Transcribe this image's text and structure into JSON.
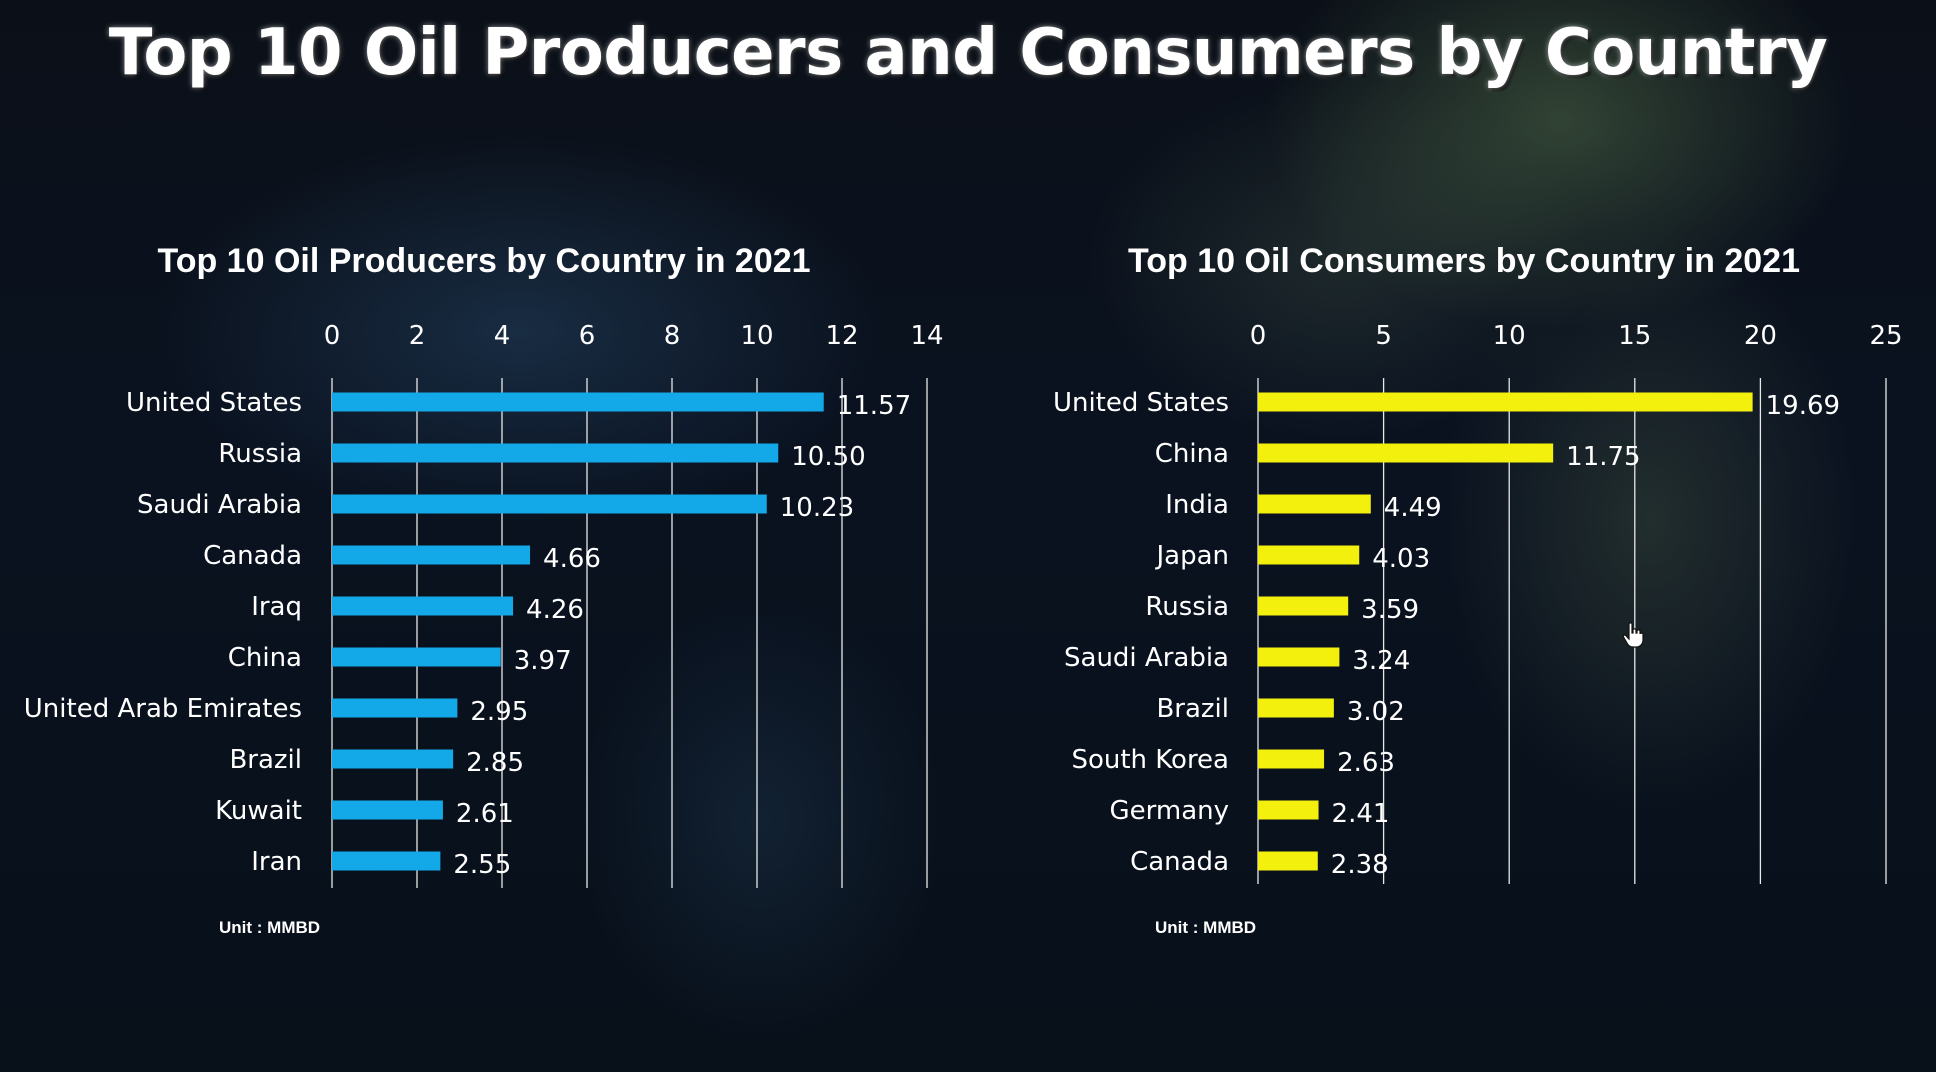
{
  "title": "Top 10 Oil Producers and Consumers by Country",
  "chart_data": [
    {
      "type": "bar",
      "orientation": "horizontal",
      "title": "Top 10 Oil Producers by Country in 2021",
      "categories": [
        "United States",
        "Russia",
        "Saudi Arabia",
        "Canada",
        "Iraq",
        "China",
        "United Arab Emirates",
        "Brazil",
        "Kuwait",
        "Iran"
      ],
      "values": [
        11.57,
        10.5,
        10.23,
        4.66,
        4.26,
        3.97,
        2.95,
        2.85,
        2.61,
        2.55
      ],
      "data_labels": [
        "11.57",
        "10.50",
        "10.23",
        "4.66",
        "4.26",
        "3.97",
        "2.95",
        "2.85",
        "2.61",
        "2.55"
      ],
      "xlim": [
        0,
        14
      ],
      "ticks": [
        0,
        2,
        4,
        6,
        8,
        10,
        12,
        14
      ],
      "axis_position": "top",
      "grid": true,
      "color": "#13a9e8",
      "unit_note": "Unit : MMBD"
    },
    {
      "type": "bar",
      "orientation": "horizontal",
      "title": "Top 10 Oil Consumers by Country in 2021",
      "categories": [
        "United States",
        "China",
        "India",
        "Japan",
        "Russia",
        "Saudi Arabia",
        "Brazil",
        "South Korea",
        "Germany",
        "Canada"
      ],
      "values": [
        19.69,
        11.75,
        4.49,
        4.03,
        3.59,
        3.24,
        3.02,
        2.63,
        2.41,
        2.38
      ],
      "data_labels": [
        "19.69",
        "11.75",
        "4.49",
        "4.03",
        "3.59",
        "3.24",
        "3.02",
        "2.63",
        "2.41",
        "2.38"
      ],
      "xlim": [
        0,
        25
      ],
      "ticks": [
        0,
        5,
        10,
        15,
        20,
        25
      ],
      "axis_position": "top",
      "grid": true,
      "color": "#f4f00e",
      "unit_note": "Unit : MMBD"
    }
  ]
}
